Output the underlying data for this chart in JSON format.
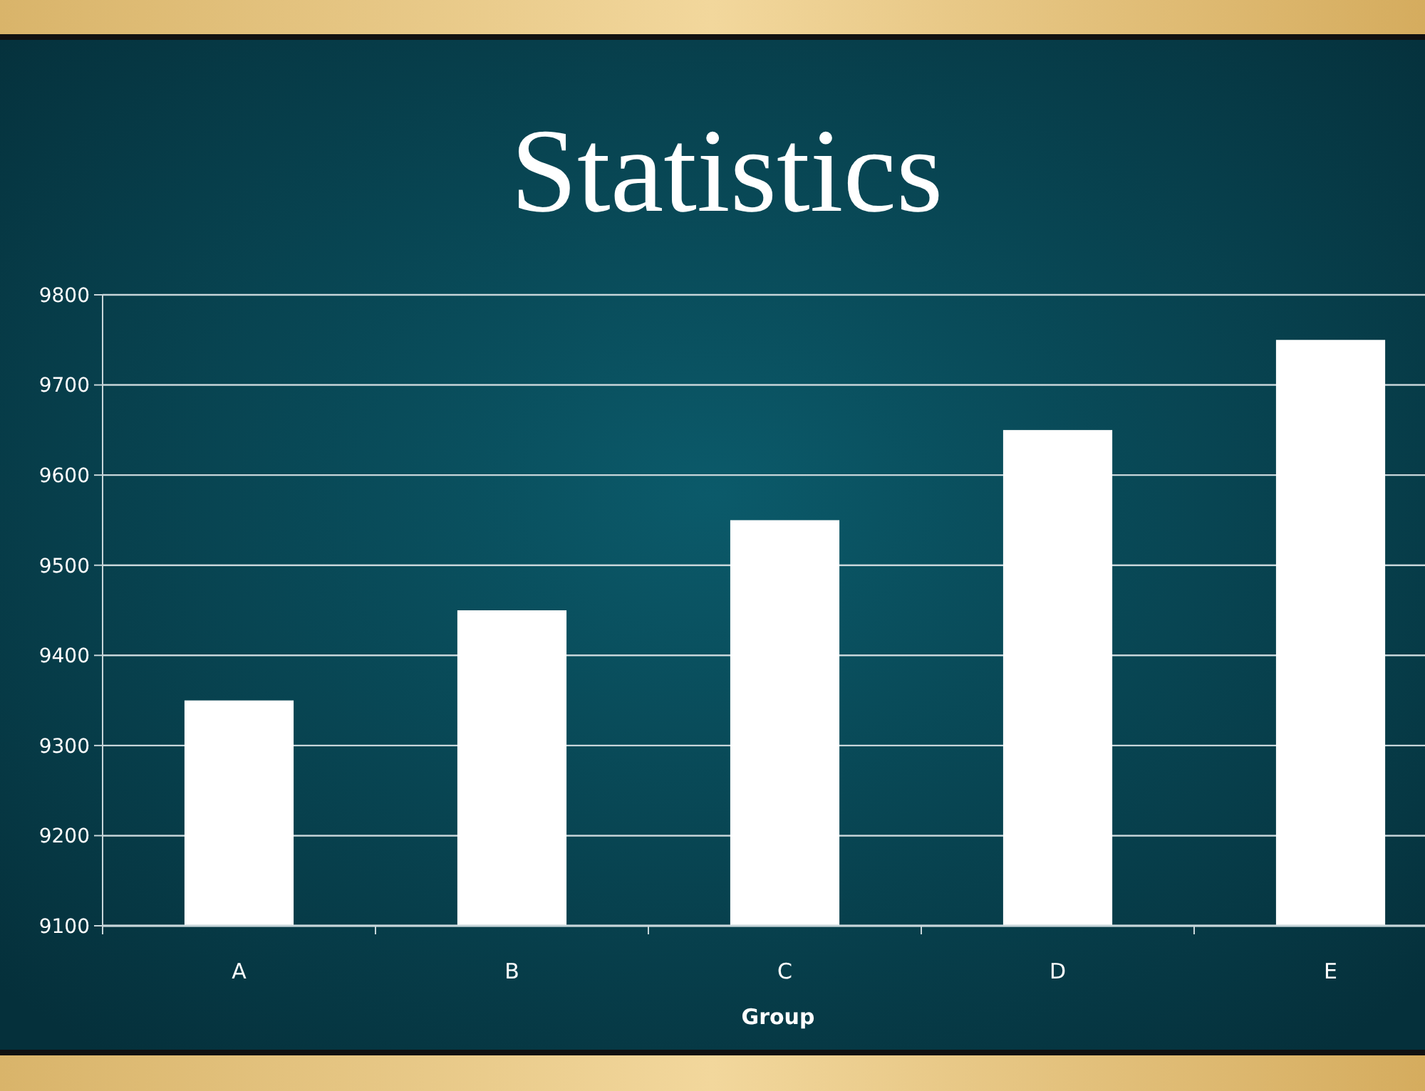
{
  "chart_data": {
    "type": "bar",
    "title": "Statistics",
    "xlabel": "Group",
    "categories": [
      "A",
      "B",
      "C",
      "D",
      "E"
    ],
    "values": [
      9350,
      9450,
      9550,
      9650,
      9750
    ],
    "color": "#ffffff",
    "ylim": [
      9100,
      9800
    ],
    "yticks": [
      9100,
      9200,
      9300,
      9400,
      9500,
      9600,
      9700,
      9800
    ],
    "grid": "y"
  }
}
